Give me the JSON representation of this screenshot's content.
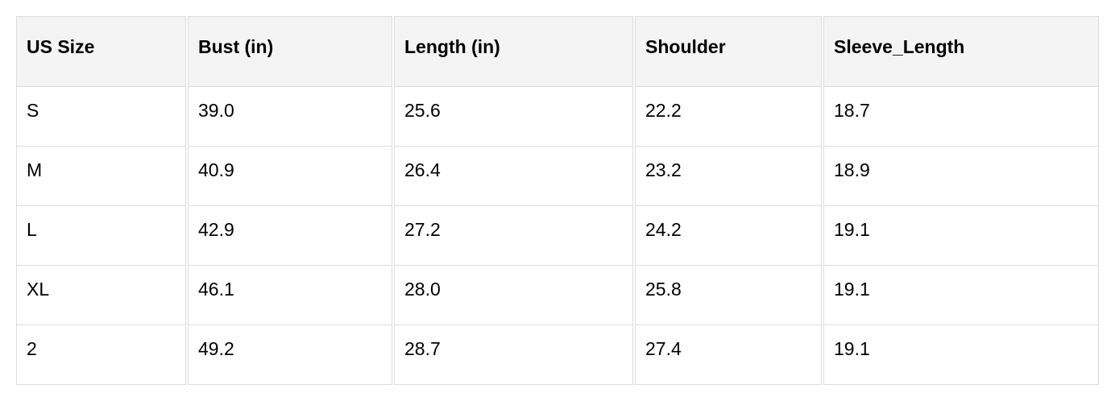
{
  "table": {
    "headers": [
      "US Size",
      "Bust (in)",
      "Length (in)",
      "Shoulder",
      "Sleeve_Length"
    ],
    "rows": [
      [
        "S",
        "39.0",
        "25.6",
        "22.2",
        "18.7"
      ],
      [
        "M",
        "40.9",
        "26.4",
        "23.2",
        "18.9"
      ],
      [
        "L",
        "42.9",
        "27.2",
        "24.2",
        "19.1"
      ],
      [
        "XL",
        "46.1",
        "28.0",
        "25.8",
        "19.1"
      ],
      [
        "2",
        "49.2",
        "28.7",
        "27.4",
        "19.1"
      ]
    ]
  }
}
